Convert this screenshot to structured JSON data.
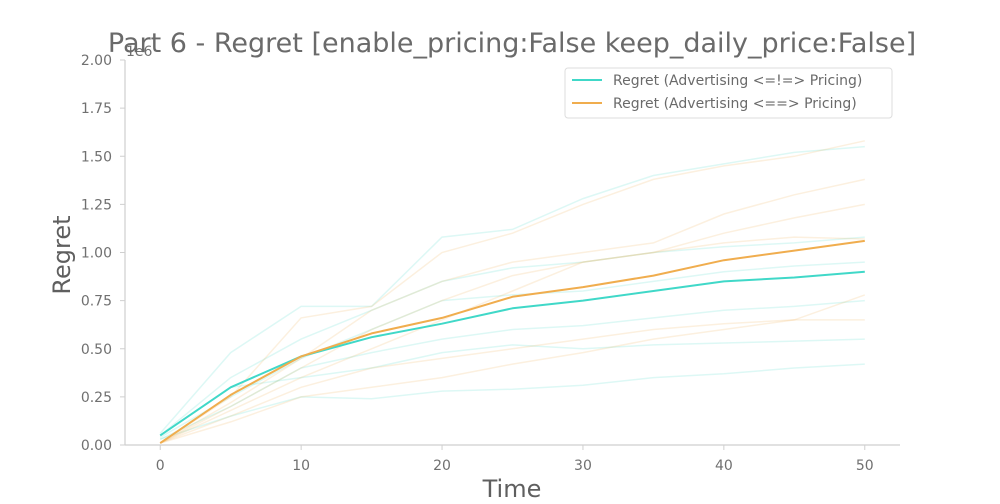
{
  "chart_data": {
    "type": "line",
    "title": "Part 6 - Regret [enable_pricing:False keep_daily_price:False]",
    "xlabel": "Time",
    "ylabel": "Regret",
    "y_scale_label": "1e6",
    "xlim": [
      -2.5,
      52.5
    ],
    "ylim": [
      0,
      2.0
    ],
    "x_ticks": [
      "0",
      "10",
      "20",
      "30",
      "40",
      "50"
    ],
    "y_ticks": [
      "0.00",
      "0.25",
      "0.50",
      "0.75",
      "1.00",
      "1.25",
      "1.50",
      "1.75",
      "2.00"
    ],
    "grid": false,
    "legend_position": "top-right",
    "x": [
      0,
      5,
      10,
      15,
      20,
      25,
      30,
      35,
      40,
      45,
      50
    ],
    "series": [
      {
        "name": "Regret (Advertising <=!=> Pricing)",
        "color": "#40d8c8",
        "values": [
          0.05,
          0.3,
          0.46,
          0.56,
          0.63,
          0.71,
          0.75,
          0.8,
          0.85,
          0.87,
          0.9
        ]
      },
      {
        "name": "Regret (Advertising <==> Pricing)",
        "color": "#f0ad4e",
        "values": [
          0.01,
          0.26,
          0.46,
          0.58,
          0.66,
          0.77,
          0.82,
          0.88,
          0.96,
          1.01,
          1.06
        ]
      }
    ],
    "faint_runs": [
      {
        "color": "#40d8c8",
        "values": [
          0.06,
          0.48,
          0.72,
          0.72,
          1.08,
          1.12,
          1.28,
          1.4,
          1.46,
          1.52,
          1.55
        ]
      },
      {
        "color": "#40d8c8",
        "values": [
          0.05,
          0.35,
          0.55,
          0.7,
          0.85,
          0.92,
          0.95,
          1.0,
          1.03,
          1.05,
          1.08
        ]
      },
      {
        "color": "#40d8c8",
        "values": [
          0.04,
          0.25,
          0.45,
          0.6,
          0.75,
          0.78,
          0.8,
          0.85,
          0.9,
          0.93,
          0.95
        ]
      },
      {
        "color": "#40d8c8",
        "values": [
          0.03,
          0.2,
          0.4,
          0.48,
          0.55,
          0.6,
          0.62,
          0.66,
          0.7,
          0.72,
          0.75
        ]
      },
      {
        "color": "#40d8c8",
        "values": [
          0.03,
          0.15,
          0.25,
          0.24,
          0.28,
          0.29,
          0.31,
          0.35,
          0.37,
          0.4,
          0.42
        ]
      },
      {
        "color": "#40d8c8",
        "values": [
          0.05,
          0.3,
          0.35,
          0.4,
          0.48,
          0.52,
          0.5,
          0.52,
          0.53,
          0.54,
          0.55
        ]
      },
      {
        "color": "#f0ad4e",
        "values": [
          0.01,
          0.25,
          0.66,
          0.72,
          1.0,
          1.1,
          1.25,
          1.38,
          1.45,
          1.5,
          1.58
        ]
      },
      {
        "color": "#f0ad4e",
        "values": [
          0.01,
          0.22,
          0.45,
          0.7,
          0.85,
          0.95,
          1.0,
          1.05,
          1.2,
          1.3,
          1.38
        ]
      },
      {
        "color": "#f0ad4e",
        "values": [
          0.01,
          0.2,
          0.4,
          0.6,
          0.75,
          0.88,
          0.95,
          1.0,
          1.1,
          1.18,
          1.25
        ]
      },
      {
        "color": "#f0ad4e",
        "values": [
          0.01,
          0.18,
          0.35,
          0.5,
          0.65,
          0.8,
          0.95,
          1.0,
          1.05,
          1.08,
          1.07
        ]
      },
      {
        "color": "#f0ad4e",
        "values": [
          0.01,
          0.15,
          0.3,
          0.4,
          0.45,
          0.5,
          0.55,
          0.6,
          0.63,
          0.65,
          0.65
        ]
      },
      {
        "color": "#f0ad4e",
        "values": [
          0.01,
          0.12,
          0.25,
          0.3,
          0.35,
          0.42,
          0.48,
          0.55,
          0.6,
          0.65,
          0.78
        ]
      }
    ]
  }
}
